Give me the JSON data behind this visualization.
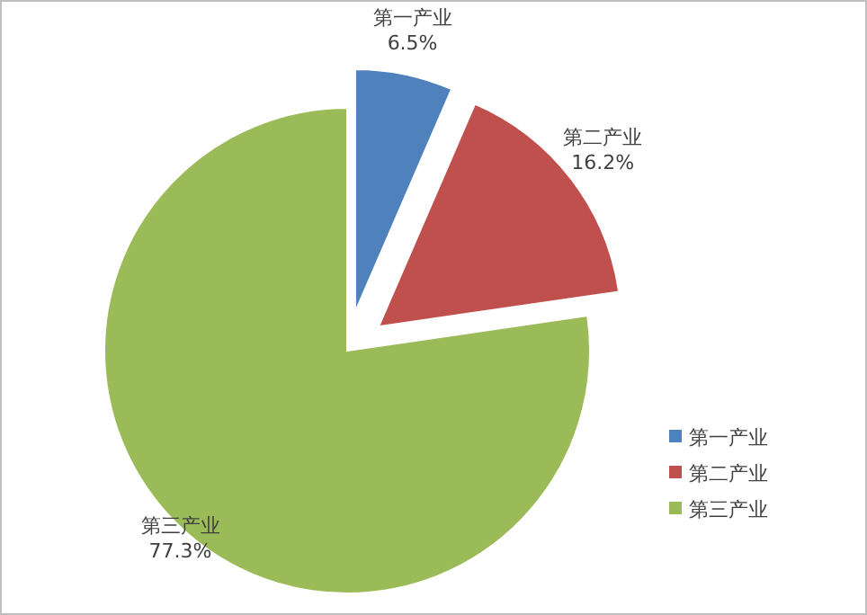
{
  "chart_data": {
    "type": "pie",
    "categories": [
      "第一产业",
      "第二产业",
      "第三产业"
    ],
    "values": [
      6.5,
      16.2,
      77.3
    ],
    "colors": [
      "#4f81bd",
      "#c0504d",
      "#9bbb59"
    ],
    "value_labels": [
      "6.5%",
      "16.2%",
      "77.3%"
    ],
    "legend": "bottom right"
  }
}
